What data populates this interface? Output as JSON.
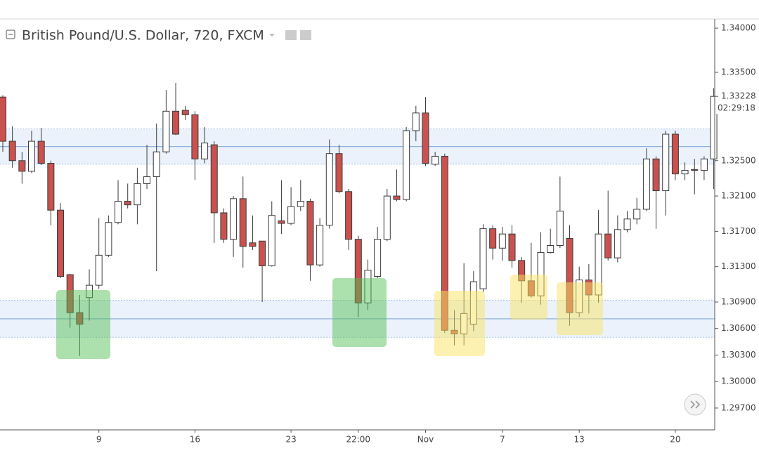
{
  "chart_data": {
    "type": "candlestick",
    "title": "British Pound/U.S. Dollar, 720, FXCM",
    "countdown": "02:29:18",
    "categories": [
      null,
      null,
      null,
      null,
      null,
      null,
      null,
      null,
      null,
      null,
      "9",
      null,
      null,
      null,
      null,
      null,
      null,
      null,
      null,
      null,
      "16",
      null,
      null,
      null,
      null,
      null,
      null,
      null,
      null,
      null,
      "23",
      null,
      null,
      null,
      null,
      null,
      null,
      "22:00",
      null,
      null,
      null,
      null,
      null,
      null,
      "Nov",
      null,
      null,
      null,
      null,
      null,
      null,
      null,
      "7",
      null,
      null,
      null,
      null,
      null,
      null,
      null,
      "13",
      null,
      null,
      null,
      null,
      null,
      null,
      null,
      null,
      null,
      "20",
      null,
      null,
      null,
      null
    ],
    "open": [
      1.3322,
      1.3272,
      1.325,
      1.3238,
      1.3272,
      1.3247,
      1.3194,
      1.3121,
      1.3078,
      1.3095,
      1.3109,
      1.3143,
      1.318,
      1.3204,
      1.32,
      1.3224,
      1.3232,
      1.326,
      1.3306,
      1.3307,
      1.3302,
      1.3252,
      1.3268,
      1.3191,
      1.3161,
      1.3207,
      1.3157,
      1.3159,
      1.3131,
      1.3182,
      1.3179,
      1.3198,
      1.3204,
      1.3132,
      1.3177,
      1.3258,
      1.3215,
      1.3161,
      1.3089,
      1.3119,
      1.3161,
      1.321,
      1.3206,
      1.3284,
      1.3304,
      1.3246,
      1.3255,
      1.3058,
      1.3054,
      1.3065,
      1.3105,
      1.3173,
      1.3151,
      1.3167,
      1.3137,
      1.3114,
      1.3097,
      1.3146,
      1.3154,
      1.3162,
      1.3078,
      1.3115,
      1.3098,
      1.3167,
      1.314,
      1.3172,
      1.3184,
      1.3195,
      1.3252,
      1.3216,
      1.328,
      1.3235,
      1.324,
      1.3239,
      1.3252
    ],
    "high": [
      1.3324,
      1.3289,
      1.326,
      1.3284,
      1.3287,
      1.325,
      1.3202,
      1.3122,
      1.3098,
      1.3127,
      1.3185,
      1.3188,
      1.3228,
      1.3224,
      1.3242,
      1.3268,
      1.3292,
      1.333,
      1.3338,
      1.3312,
      1.3306,
      1.3288,
      1.3272,
      1.3196,
      1.321,
      1.3232,
      1.3188,
      1.3159,
      1.3204,
      1.3228,
      1.322,
      1.3228,
      1.3207,
      1.3185,
      1.3274,
      1.3268,
      1.3218,
      1.3165,
      1.3138,
      1.3175,
      1.3218,
      1.324,
      1.3288,
      1.3312,
      1.3322,
      1.326,
      1.3258,
      1.3081,
      1.3134,
      1.3125,
      1.3178,
      1.3177,
      1.3175,
      1.3177,
      1.3141,
      1.3157,
      1.3169,
      1.3173,
      1.3232,
      1.3177,
      1.313,
      1.3133,
      1.3194,
      1.3216,
      1.3188,
      1.3193,
      1.3208,
      1.3264,
      1.3255,
      1.3284,
      1.3284,
      1.3248,
      1.3252,
      1.3255,
      1.3332
    ],
    "low": [
      1.326,
      1.3242,
      1.3224,
      1.3236,
      1.3245,
      1.3177,
      1.3117,
      1.3061,
      1.3029,
      1.3069,
      1.3105,
      1.3141,
      1.3178,
      1.3196,
      1.3178,
      1.3218,
      1.3125,
      1.3258,
      1.3279,
      1.3296,
      1.3228,
      1.3247,
      1.3157,
      1.3157,
      1.3141,
      1.3129,
      1.3149,
      1.309,
      1.313,
      1.3167,
      1.3177,
      1.3193,
      1.3114,
      1.313,
      1.3173,
      1.3213,
      1.3149,
      1.3073,
      1.3081,
      1.3117,
      1.3159,
      1.3204,
      1.3204,
      1.3272,
      1.3244,
      1.3244,
      1.3055,
      1.3041,
      1.3041,
      1.3057,
      1.3101,
      1.3138,
      1.3137,
      1.3129,
      1.3089,
      1.3095,
      1.3087,
      1.3145,
      1.3151,
      1.3063,
      1.3073,
      1.3077,
      1.3089,
      1.3137,
      1.3135,
      1.3169,
      1.3178,
      1.3193,
      1.3173,
      1.3188,
      1.3228,
      1.3228,
      1.3212,
      1.3228,
      1.3218
    ],
    "close": [
      1.3272,
      1.325,
      1.3238,
      1.3272,
      1.3247,
      1.3194,
      1.3119,
      1.3078,
      1.3065,
      1.3109,
      1.3143,
      1.318,
      1.3204,
      1.32,
      1.3224,
      1.3232,
      1.326,
      1.3306,
      1.328,
      1.3302,
      1.3252,
      1.327,
      1.3191,
      1.3161,
      1.3207,
      1.3153,
      1.3153,
      1.3131,
      1.3188,
      1.3179,
      1.3198,
      1.3204,
      1.3132,
      1.3177,
      1.3258,
      1.3215,
      1.3161,
      1.3089,
      1.3126,
      1.3161,
      1.321,
      1.3206,
      1.3284,
      1.3304,
      1.3247,
      1.3255,
      1.3058,
      1.3054,
      1.3077,
      1.3113,
      1.3173,
      1.3151,
      1.3167,
      1.3137,
      1.3114,
      1.3097,
      1.3146,
      1.3154,
      1.3193,
      1.3078,
      1.3115,
      1.3098,
      1.3167,
      1.314,
      1.3172,
      1.3184,
      1.3195,
      1.3252,
      1.3216,
      1.328,
      1.3235,
      1.3239,
      1.3239,
      1.3252,
      1.33228
    ],
    "up_color": "#ffffff",
    "down_color": "#c9524f",
    "wick_color": "#3a3a3a",
    "levels": [
      {
        "value": 1.3266,
        "low": 1.3246,
        "high": 1.3286
      },
      {
        "value": 1.3071,
        "low": 1.305,
        "high": 1.3092
      }
    ],
    "ylim": [
      1.29453,
      1.34104
    ],
    "yticks": [
      {
        "value": 1.34,
        "label": "1.34000"
      },
      {
        "value": 1.335,
        "label": "1.33500"
      },
      {
        "value": 1.325,
        "label": "1.32500"
      },
      {
        "value": 1.321,
        "label": "1.32100"
      },
      {
        "value": 1.317,
        "label": "1.31700"
      },
      {
        "value": 1.313,
        "label": "1.31300"
      },
      {
        "value": 1.309,
        "label": "1.30900"
      },
      {
        "value": 1.306,
        "label": "1.30600"
      },
      {
        "value": 1.303,
        "label": "1.30300"
      },
      {
        "value": 1.3,
        "label": "1.30000"
      },
      {
        "value": 1.297,
        "label": "1.29700"
      }
    ],
    "last_price": {
      "value": 1.33228,
      "label": "1.33228"
    }
  }
}
